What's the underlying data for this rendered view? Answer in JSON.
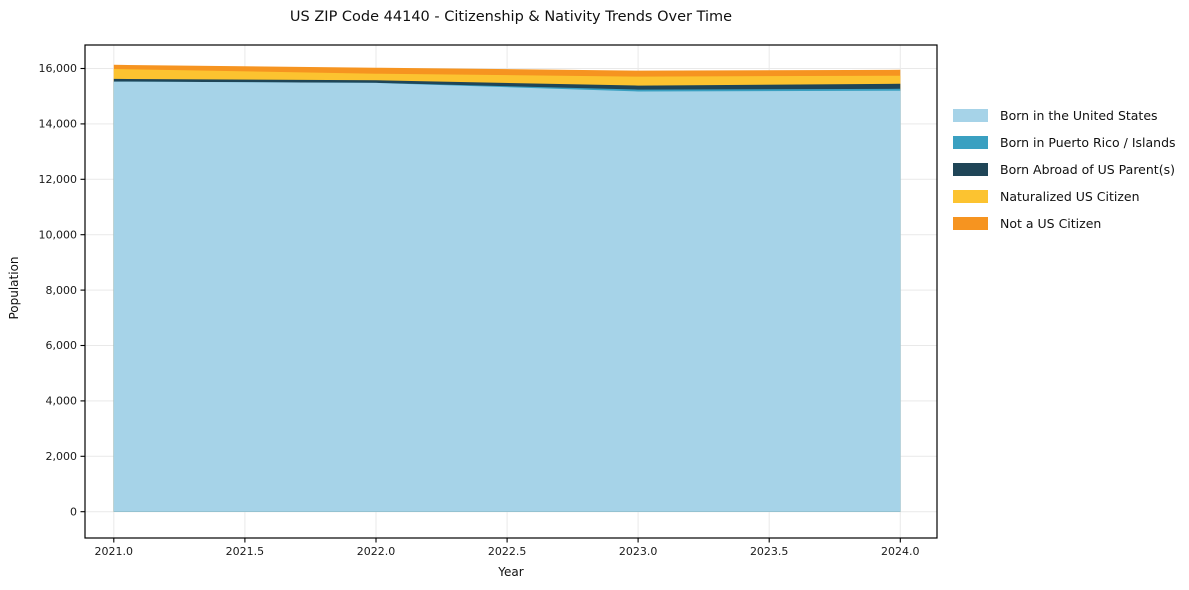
{
  "chart_data": {
    "type": "area",
    "stacked": true,
    "title": "US ZIP Code 44140 - Citizenship & Nativity Trends Over Time",
    "xlabel": "Year",
    "ylabel": "Population",
    "x": [
      2021,
      2022,
      2023,
      2024
    ],
    "series": [
      {
        "name": "Born in the United States",
        "color": "#a6d3e8",
        "values": [
          15530,
          15480,
          15170,
          15200
        ]
      },
      {
        "name": "Born in Puerto Rico / Islands",
        "color": "#3aa0c1",
        "values": [
          0,
          0,
          70,
          70
        ]
      },
      {
        "name": "Born Abroad of US Parent(s)",
        "color": "#1f4557",
        "values": [
          95,
          95,
          145,
          180
        ]
      },
      {
        "name": "Naturalized US Citizen",
        "color": "#fcc330",
        "values": [
          360,
          240,
          325,
          290
        ]
      },
      {
        "name": "Not a US Citizen",
        "color": "#f69420",
        "values": [
          150,
          215,
          215,
          215
        ]
      }
    ],
    "xticks": {
      "values": [
        2021.0,
        2021.5,
        2022.0,
        2022.5,
        2023.0,
        2023.5,
        2024.0
      ],
      "labels": [
        "2021.0",
        "2021.5",
        "2022.0",
        "2022.5",
        "2023.0",
        "2023.5",
        "2024.0"
      ]
    },
    "yticks": {
      "values": [
        0,
        2000,
        4000,
        6000,
        8000,
        10000,
        12000,
        14000,
        16000
      ],
      "labels": [
        "0",
        "2,000",
        "4,000",
        "6,000",
        "8,000",
        "10,000",
        "12,000",
        "14,000",
        "16,000"
      ]
    },
    "xlim": [
      2020.89,
      2024.14
    ],
    "ylim": [
      -950,
      16850
    ],
    "grid": true,
    "grid_color": "#e9e9e9",
    "axis_color": "#000000",
    "tick_text_color": "#1a1a1a",
    "legend_position": "right-of-plot"
  }
}
